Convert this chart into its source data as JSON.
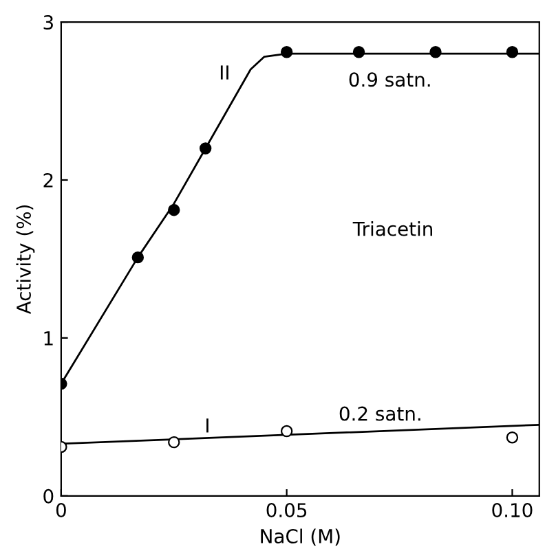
{
  "chart_data": {
    "type": "scatter",
    "xlabel": "NaCl (M)",
    "ylabel": "Activity (%)",
    "xlim": [
      0,
      0.106
    ],
    "ylim": [
      0,
      3
    ],
    "xticks": [
      0,
      0.05,
      {
        "value": 0.1,
        "label": "0.10"
      }
    ],
    "yticks": [
      0,
      1,
      2,
      3
    ],
    "grid": false,
    "legend": false,
    "series": [
      {
        "type": "line",
        "color": "#000000",
        "marker": "none",
        "line_style": "solid",
        "x": [
          0,
          0.017,
          0.025,
          0.032,
          0.042,
          0.045,
          0.05,
          0.106
        ],
        "values": [
          0.71,
          1.51,
          1.85,
          2.2,
          2.7,
          2.78,
          2.8,
          2.8
        ]
      },
      {
        "type": "line",
        "color": "#000000",
        "marker": "none",
        "line_style": "solid",
        "x": [
          0,
          0.106
        ],
        "values": [
          0.33,
          0.45
        ]
      },
      {
        "type": "scatter",
        "color": "#000000",
        "marker": "circle",
        "x": [
          0,
          0.017,
          0.025,
          0.032,
          0.05,
          0.066,
          0.083,
          0.1
        ],
        "values": [
          0.71,
          1.51,
          1.81,
          2.2,
          2.81,
          2.81,
          2.81,
          2.81
        ]
      },
      {
        "type": "scatter",
        "color": "#ffffff",
        "marker": "circle",
        "x": [
          0,
          0.025,
          0.05,
          0.1
        ],
        "values": [
          0.31,
          0.34,
          0.41,
          0.37
        ]
      }
    ],
    "annotations": [
      "II",
      "0.9 satn.",
      "Triacetin",
      "I",
      "0.2 satn."
    ]
  }
}
